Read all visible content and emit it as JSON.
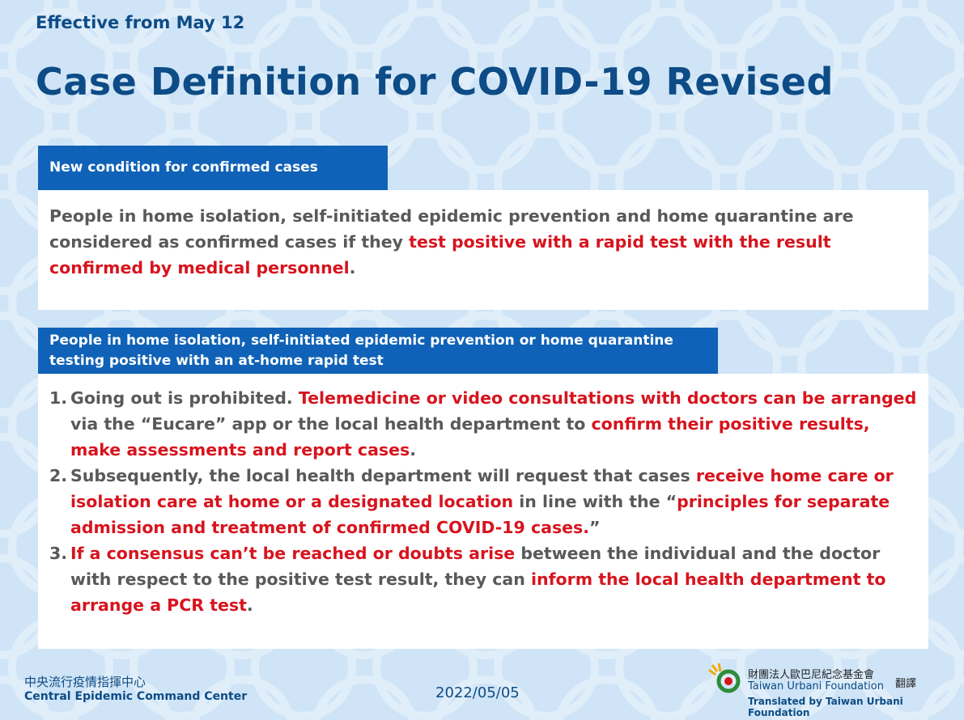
{
  "header": {
    "subtitle": "Effective from May 12",
    "title": "Case Definition for COVID-19 Revised"
  },
  "sections": [
    {
      "heading": "New condition for confirmed cases",
      "paragraphs": [
        {
          "segments": [
            {
              "text": "People in home isolation, self-initiated epidemic prevention and home quarantine are considered as confirmed cases if they ",
              "color": "#58595b"
            },
            {
              "text": "test positive with a rapid test with the result confirmed by medical personnel",
              "color": "#d7141e"
            },
            {
              "text": ".",
              "color": "#58595b"
            }
          ]
        }
      ]
    },
    {
      "heading": "People in home isolation, self-initiated epidemic prevention or home quarantine testing positive with an at-home rapid test",
      "paragraphs": [
        {
          "number": "1.",
          "segments": [
            {
              "text": "Going out is prohibited. ",
              "color": "#58595b"
            },
            {
              "text": "Telemedicine or video consultations with doctors can be arranged",
              "color": "#d7141e"
            },
            {
              "text": " via the “Eucare” app or the local health department to ",
              "color": "#58595b"
            },
            {
              "text": "confirm their positive results, make assessments and report cases",
              "color": "#d7141e"
            },
            {
              "text": ".",
              "color": "#58595b"
            }
          ]
        },
        {
          "number": "2.",
          "segments": [
            {
              "text": "Subsequently, the local health department will request that cases ",
              "color": "#58595b"
            },
            {
              "text": "receive home care or isolation care at home or a designated location",
              "color": "#d7141e"
            },
            {
              "text": " in line with the “",
              "color": "#58595b"
            },
            {
              "text": "principles for separate admission and treatment of confirmed COVID-19 cases.",
              "color": "#d7141e"
            },
            {
              "text": "”",
              "color": "#58595b"
            }
          ]
        },
        {
          "number": "3.",
          "segments": [
            {
              "text": "If a consensus can’t be reached or doubts arise",
              "color": "#d7141e"
            },
            {
              "text": " between the individual and the doctor with respect to the positive test result, they can ",
              "color": "#58595b"
            },
            {
              "text": "inform the local health department to arrange a PCR test",
              "color": "#d7141e"
            },
            {
              "text": ".",
              "color": "#58595b"
            }
          ]
        }
      ]
    }
  ],
  "footer": {
    "org_zh": "中央流行疫情指揮中心",
    "org_en": "Central Epidemic Command Center",
    "date": "2022/05/05",
    "translator_zh": "財團法人歐巴尼紀念基金會",
    "translator_en": "Taiwan Urbani Foundation",
    "translate_zh": "翻譯",
    "translated_by": "Translated by Taiwan Urbani Foundation"
  }
}
